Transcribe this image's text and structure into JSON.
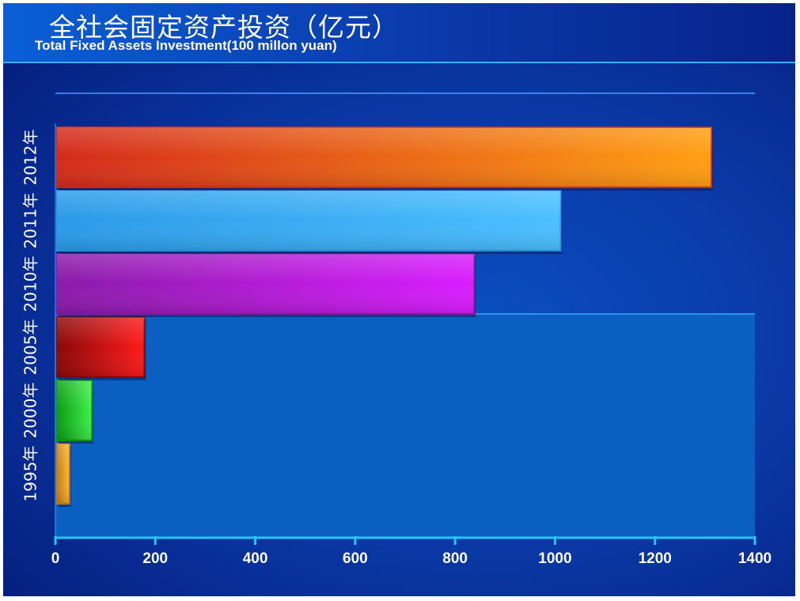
{
  "header": {
    "title_cn": "全社会固定资产投资（亿元）",
    "title_en": "Total Fixed Assets Investment(100 millon yuan)"
  },
  "chart_data": {
    "type": "bar",
    "orientation": "horizontal",
    "title": "全社会固定资产投资（亿元）",
    "subtitle": "Total Fixed Assets Investment(100 millon yuan)",
    "categories": [
      "1995年",
      "2000年",
      "2005年",
      "2010年",
      "2011年",
      "2012年"
    ],
    "values": [
      25,
      70,
      175,
      835,
      1008,
      1310
    ],
    "xlim": [
      0,
      1400
    ],
    "xticks": [
      0,
      200,
      400,
      600,
      800,
      1000,
      1200,
      1400
    ],
    "bar_colors": [
      [
        "#c77b10",
        "#ffb830"
      ],
      [
        "#0a9a12",
        "#3ef04a"
      ],
      [
        "#8a0606",
        "#ff1a1a"
      ],
      [
        "#8a1aa8",
        "#d91cff"
      ],
      [
        "#2a9ae8",
        "#4abfff"
      ],
      [
        "#d42a1a",
        "#ff9f12"
      ]
    ],
    "grid": false,
    "legend": "none"
  }
}
